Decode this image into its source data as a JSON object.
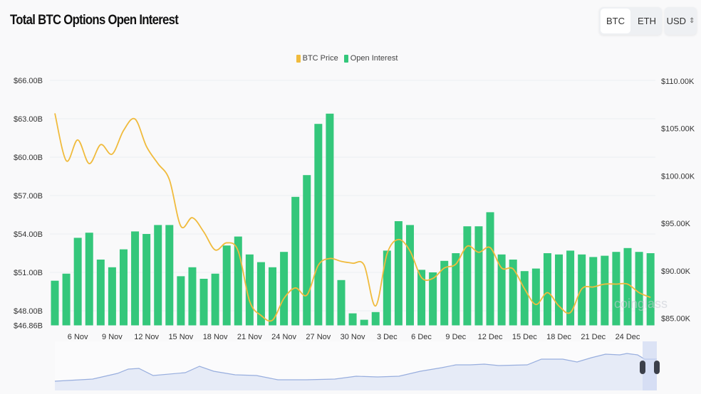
{
  "header": {
    "title": "Total BTC Options Open Interest"
  },
  "controls": {
    "coin_options": [
      "BTC",
      "ETH"
    ],
    "selected_coin": "BTC",
    "currency": "USD"
  },
  "colors": {
    "price": "#f0bb3d",
    "open_interest": "#34c77b",
    "navigator_line": "#98aede",
    "navigator_fill": "#e6ebf7"
  },
  "watermark": "coinglass",
  "chart_data": {
    "type": "bar+line",
    "legend": [
      "BTC Price",
      "Open Interest"
    ],
    "legend_position": "top-center",
    "grid": true,
    "categories": [
      "4 Nov",
      "5 Nov",
      "6 Nov",
      "7 Nov",
      "8 Nov",
      "9 Nov",
      "10 Nov",
      "11 Nov",
      "12 Nov",
      "13 Nov",
      "14 Nov",
      "15 Nov",
      "16 Nov",
      "17 Nov",
      "18 Nov",
      "19 Nov",
      "20 Nov",
      "21 Nov",
      "22 Nov",
      "23 Nov",
      "24 Nov",
      "25 Nov",
      "26 Nov",
      "27 Nov",
      "28 Nov",
      "29 Nov",
      "30 Nov",
      "1 Dec",
      "2 Dec",
      "3 Dec",
      "4 Dec",
      "5 Dec",
      "6 Dec",
      "7 Dec",
      "8 Dec",
      "9 Dec",
      "10 Dec",
      "11 Dec",
      "12 Dec",
      "13 Dec",
      "14 Dec",
      "15 Dec",
      "16 Dec",
      "17 Dec",
      "18 Dec",
      "19 Dec",
      "20 Dec",
      "21 Dec",
      "22 Dec",
      "23 Dec",
      "24 Dec",
      "25 Dec",
      "26 Dec"
    ],
    "x_tick_labels": [
      "6 Nov",
      "9 Nov",
      "12 Nov",
      "15 Nov",
      "18 Nov",
      "21 Nov",
      "24 Nov",
      "27 Nov",
      "30 Nov",
      "3 Dec",
      "6 Dec",
      "9 Dec",
      "12 Dec",
      "15 Dec",
      "18 Dec",
      "21 Dec",
      "24 Dec"
    ],
    "series": [
      {
        "name": "Open Interest",
        "type": "bar",
        "axis": "left",
        "unit": "B USD",
        "values": [
          50.35,
          50.9,
          53.7,
          54.1,
          52.0,
          51.4,
          52.8,
          54.2,
          54.0,
          54.7,
          54.7,
          50.7,
          51.4,
          50.5,
          50.9,
          53.1,
          53.8,
          52.4,
          51.8,
          51.4,
          52.6,
          56.9,
          58.6,
          62.6,
          63.4,
          50.4,
          47.8,
          47.3,
          47.9,
          52.7,
          55.0,
          54.7,
          51.2,
          51.0,
          51.9,
          52.5,
          54.6,
          54.6,
          55.7,
          52.4,
          52.0,
          51.1,
          51.3,
          52.5,
          52.4,
          52.7,
          52.4,
          52.2,
          52.3,
          52.6,
          52.9,
          52.6,
          52.5
        ]
      },
      {
        "name": "BTC Price",
        "type": "line",
        "axis": "right",
        "unit": "K USD",
        "values": [
          106.6,
          101.6,
          103.8,
          101.3,
          103.3,
          102.3,
          104.8,
          106.0,
          103.1,
          101.3,
          99.6,
          94.7,
          95.6,
          94.1,
          92.2,
          92.95,
          92.1,
          86.8,
          85.3,
          84.8,
          87.1,
          88.2,
          87.45,
          90.6,
          91.3,
          91.0,
          90.8,
          90.6,
          86.3,
          91.8,
          93.3,
          92.1,
          89.3,
          89.2,
          90.3,
          90.7,
          92.6,
          91.95,
          92.45,
          90.3,
          90.2,
          88.1,
          86.45,
          87.7,
          86.3,
          85.6,
          88.1,
          88.3,
          88.6,
          88.6,
          88.6,
          87.7,
          87.2
        ]
      }
    ],
    "left_axis": {
      "ticks": [
        "$46.86B",
        "$48.00B",
        "$51.00B",
        "$54.00B",
        "$57.00B",
        "$60.00B",
        "$63.00B",
        "$66.00B"
      ],
      "tick_values": [
        46.86,
        48,
        51,
        54,
        57,
        60,
        63,
        66
      ],
      "range": [
        46.86,
        66
      ]
    },
    "right_axis": {
      "ticks": [
        "$85.00K",
        "$90.00K",
        "$95.00K",
        "$100.00K",
        "$105.00K",
        "$110.00K"
      ],
      "tick_values": [
        85,
        90,
        95,
        100,
        105,
        110
      ],
      "range": [
        84.6,
        110
      ]
    }
  }
}
